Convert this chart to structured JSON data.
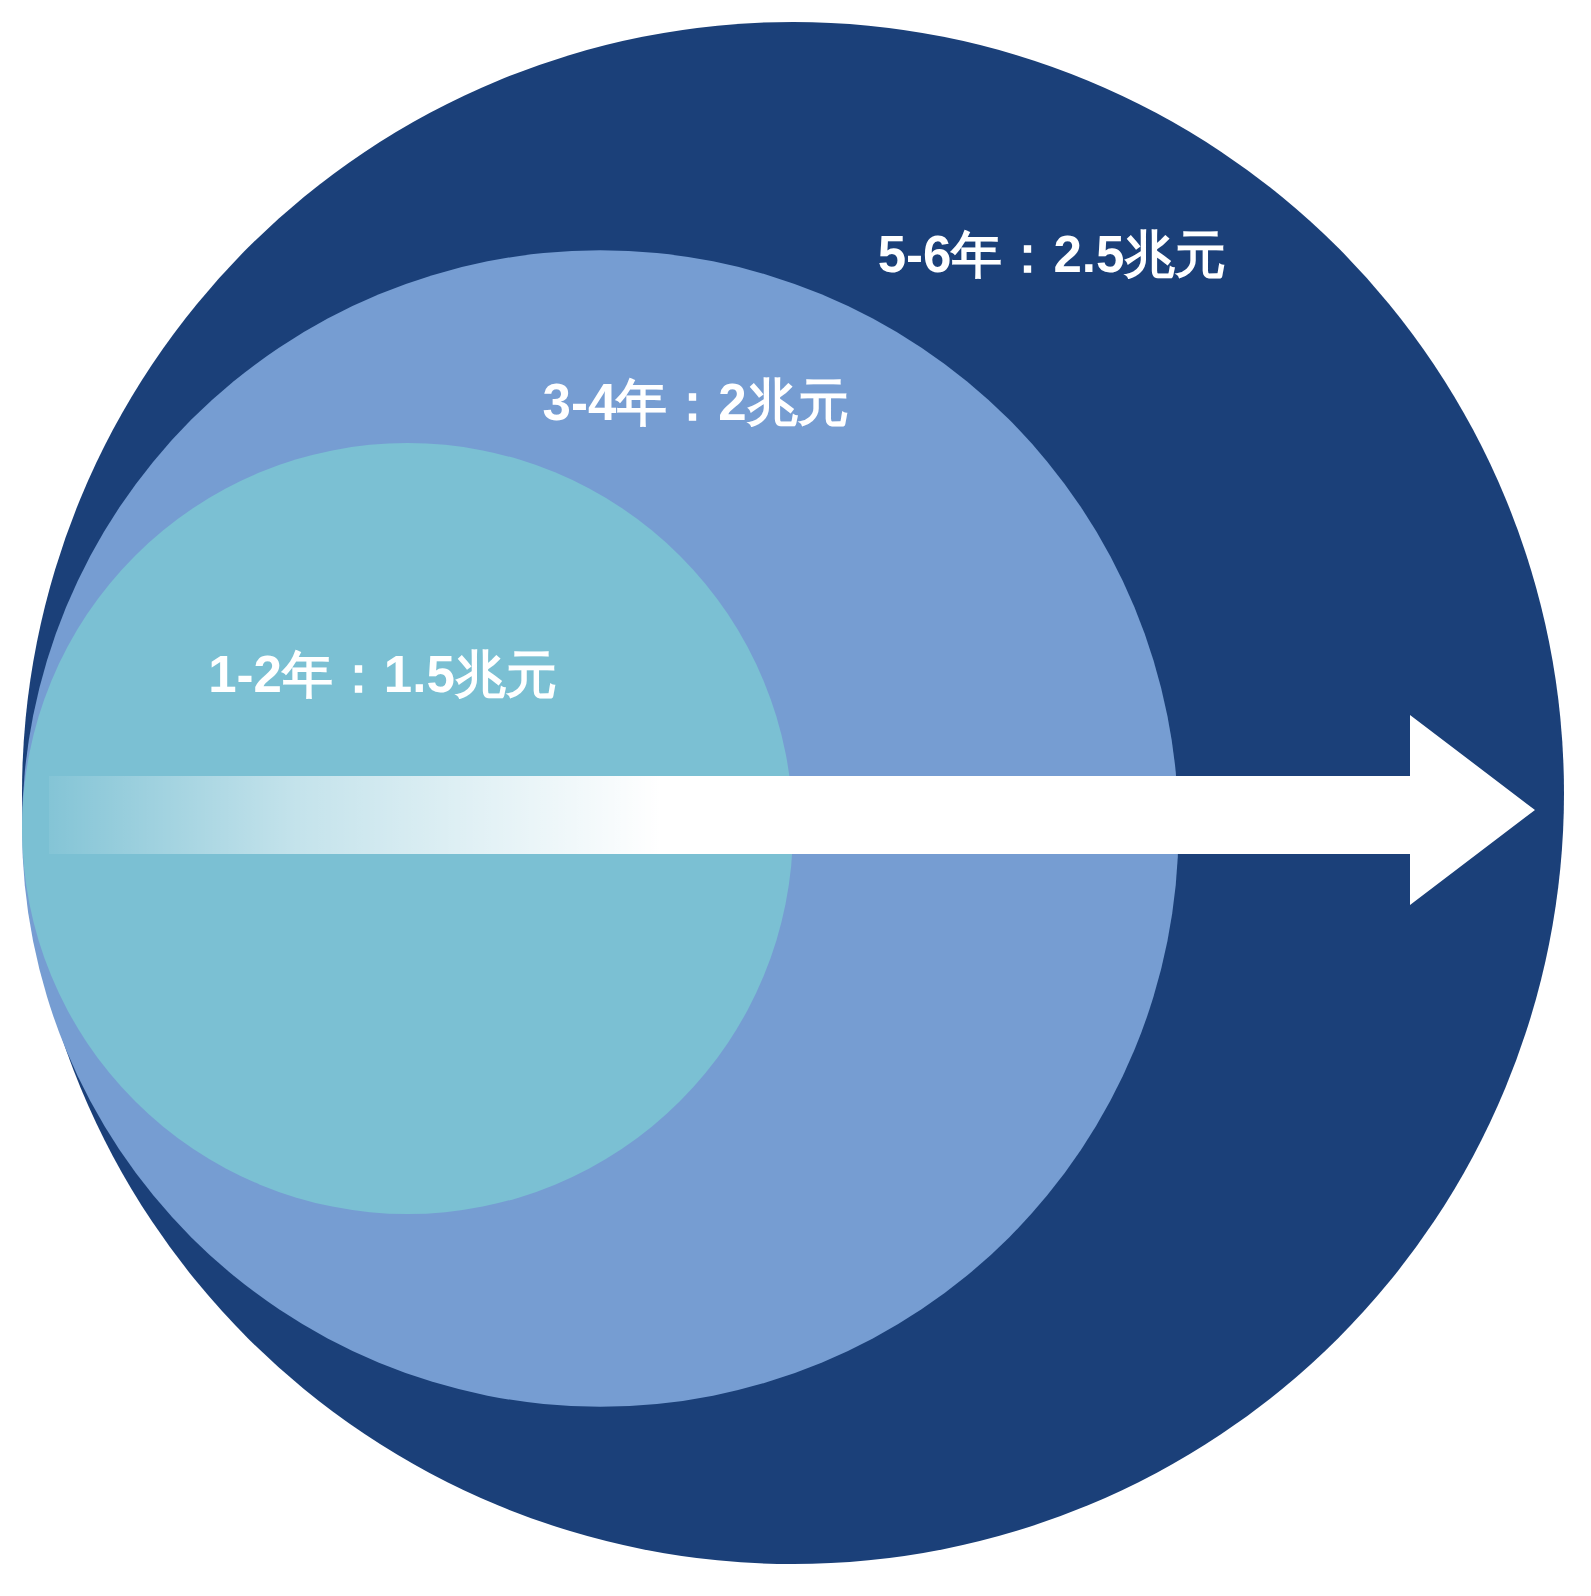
{
  "chart_data": {
    "type": "other",
    "categories": [
      "1-2年",
      "3-4年",
      "5-6年"
    ],
    "values": [
      1.5,
      2,
      2.5
    ],
    "value_labels": [
      "：1.5兆元",
      "：2兆元",
      "：2.5兆元"
    ],
    "colors": [
      "#7bc0d3",
      "#769dd2",
      "#1b4079"
    ]
  }
}
